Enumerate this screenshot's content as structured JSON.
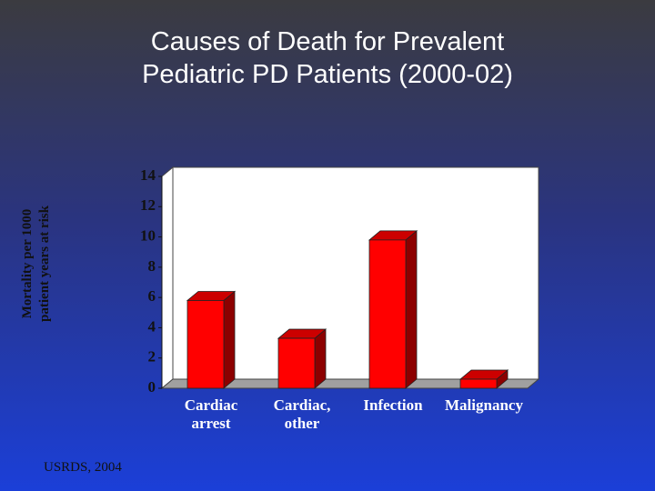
{
  "chart_data": {
    "type": "bar3d",
    "title": "Causes of Death for Prevalent Pediatric PD Patients (2000-02)",
    "ylabel": "Mortality per 1000 patient years at risk",
    "categories": [
      "Cardiac arrest",
      "Cardiac, other",
      "Infection",
      "Malignancy"
    ],
    "values": [
      5.8,
      3.3,
      9.8,
      0.6
    ],
    "color": "#ff0000",
    "ylim": [
      0,
      14
    ],
    "yticks": [
      0,
      2,
      4,
      6,
      8,
      10,
      12,
      14
    ],
    "source": "USRDS, 2004"
  }
}
